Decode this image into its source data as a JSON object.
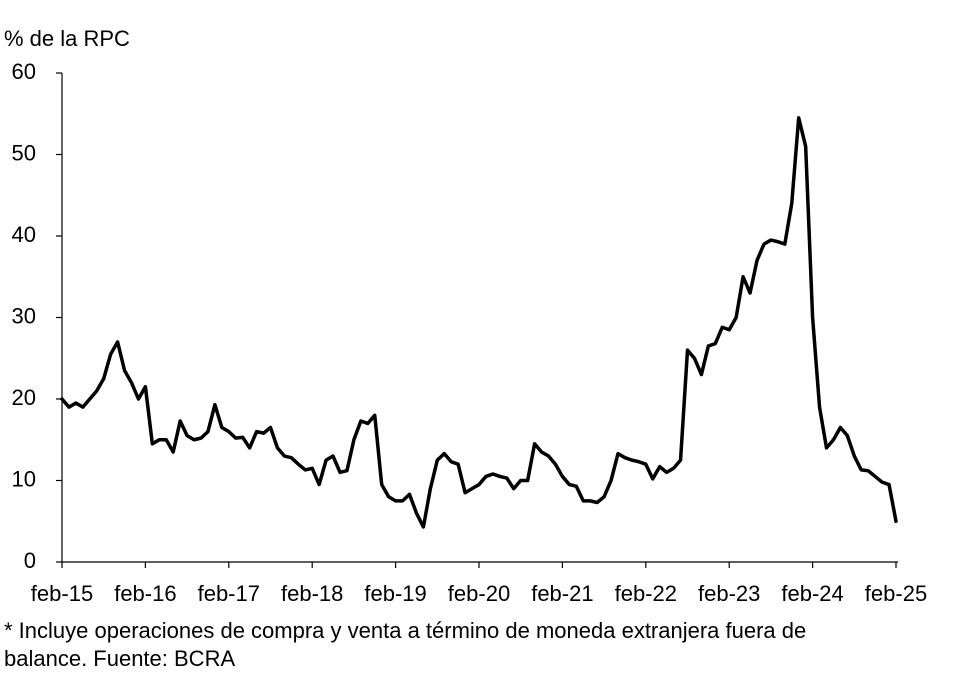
{
  "chart_data": {
    "type": "line",
    "title": "% de la RPC",
    "note": [
      "* Incluye operaciones de compra y venta a término de moneda extranjera fuera de",
      "balance. Fuente: BCRA"
    ],
    "categories": [
      "feb-15",
      null,
      null,
      null,
      null,
      null,
      null,
      null,
      null,
      null,
      null,
      null,
      "feb-16",
      null,
      null,
      null,
      null,
      null,
      null,
      null,
      null,
      null,
      null,
      null,
      "feb-17",
      null,
      null,
      null,
      null,
      null,
      null,
      null,
      null,
      null,
      null,
      null,
      "feb-18",
      null,
      null,
      null,
      null,
      null,
      null,
      null,
      null,
      null,
      null,
      null,
      "feb-19",
      null,
      null,
      null,
      null,
      null,
      null,
      null,
      null,
      null,
      null,
      null,
      "feb-20",
      null,
      null,
      null,
      null,
      null,
      null,
      null,
      null,
      null,
      null,
      null,
      "feb-21",
      null,
      null,
      null,
      null,
      null,
      null,
      null,
      null,
      null,
      null,
      null,
      "feb-22",
      null,
      null,
      null,
      null,
      null,
      null,
      null,
      null,
      null,
      null,
      null,
      "feb-23",
      null,
      null,
      null,
      null,
      null,
      null,
      null,
      null,
      null,
      null,
      null,
      "feb-24",
      null,
      null,
      null,
      null,
      null,
      null,
      null,
      null,
      null,
      null,
      null,
      "feb-25"
    ],
    "values": [
      20,
      19,
      19.5,
      19,
      20,
      21,
      22.5,
      25.5,
      27,
      23.5,
      22,
      20,
      21.5,
      14.5,
      15,
      15,
      13.5,
      17.3,
      15.5,
      15,
      15.2,
      16,
      19.3,
      16.5,
      16,
      15.2,
      15.3,
      14,
      16,
      15.8,
      16.5,
      14,
      13,
      12.8,
      12,
      11.3,
      11.5,
      9.5,
      12.5,
      13,
      11,
      11.2,
      15,
      17.3,
      17,
      18,
      9.5,
      8,
      7.5,
      7.5,
      8.3,
      6,
      4.3,
      9,
      12.5,
      13.3,
      12.3,
      12,
      8.5,
      9,
      9.5,
      10.5,
      10.8,
      10.5,
      10.3,
      9,
      10,
      10,
      14.5,
      13.5,
      13,
      12,
      10.5,
      9.5,
      9.3,
      7.5,
      7.5,
      7.3,
      8,
      10,
      13.3,
      12.8,
      12.5,
      12.3,
      12,
      10.2,
      11.7,
      11,
      11.5,
      12.5,
      26,
      25,
      23,
      26.5,
      26.8,
      28.8,
      28.5,
      30,
      35,
      33,
      37,
      39,
      39.5,
      39.3,
      39,
      44,
      54.5,
      51,
      30,
      19,
      14,
      15,
      16.5,
      15.5,
      13,
      11.3,
      11.2,
      10.5,
      9.8,
      9.5,
      5
    ],
    "color": "#000000",
    "ylim": [
      0,
      60
    ],
    "yticks": [
      0,
      10,
      20,
      30,
      40,
      50,
      60
    ],
    "grid": false
  }
}
